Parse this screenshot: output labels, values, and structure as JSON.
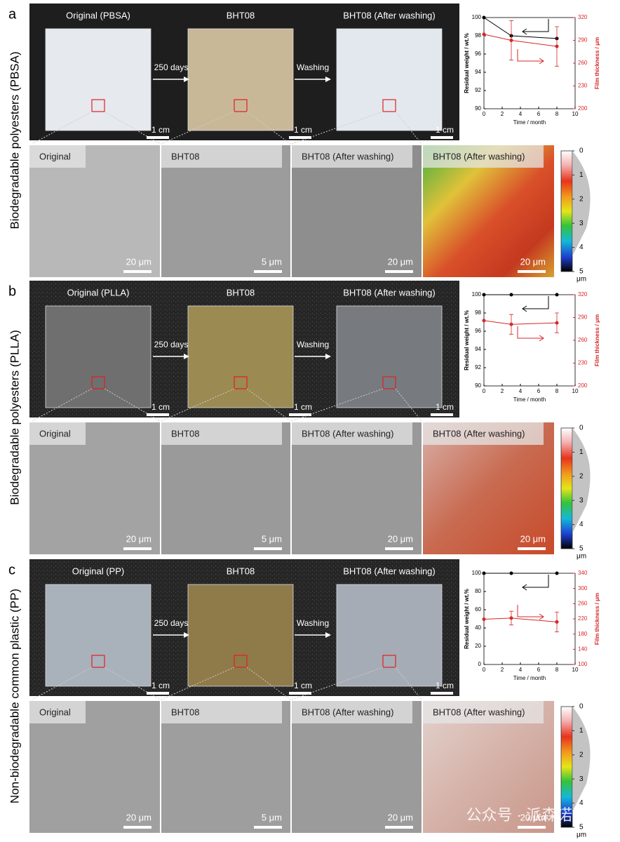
{
  "chart_data": [
    {
      "type": "line",
      "xlabel": "Time / month",
      "ylabel": "Residual weight / wt.%",
      "y2label": "Film thickness / μm",
      "x": [
        0,
        3,
        8
      ],
      "xlim": [
        0,
        10
      ],
      "xticks": [
        0,
        2,
        4,
        6,
        8,
        10
      ],
      "ylim": [
        90,
        100
      ],
      "yticks": [
        90,
        92,
        94,
        96,
        98,
        100
      ],
      "y2lim": [
        200,
        320
      ],
      "y2ticks": [
        200,
        230,
        260,
        290,
        320
      ],
      "series": [
        {
          "color": "#000000",
          "values": [
            100,
            98,
            97.7
          ]
        },
        {
          "color": "#d62728",
          "axis": "y2",
          "values": [
            298,
            290,
            282
          ],
          "errors": [
            null,
            26,
            26
          ]
        }
      ]
    },
    {
      "type": "line",
      "xlabel": "Time / month",
      "ylabel": "Residual weight / wt.%",
      "y2label": "Film thickness / μm",
      "x": [
        0,
        3,
        8
      ],
      "xlim": [
        0,
        10
      ],
      "xticks": [
        0,
        2,
        4,
        6,
        8,
        10
      ],
      "ylim": [
        90,
        100
      ],
      "yticks": [
        90,
        92,
        94,
        96,
        98,
        100
      ],
      "y2lim": [
        200,
        320
      ],
      "y2ticks": [
        200,
        230,
        260,
        290,
        320
      ],
      "series": [
        {
          "color": "#000000",
          "values": [
            100,
            100,
            100
          ]
        },
        {
          "color": "#d62728",
          "axis": "y2",
          "values": [
            286,
            281,
            283
          ],
          "errors": [
            null,
            13,
            13
          ]
        }
      ]
    },
    {
      "type": "line",
      "xlabel": "Time / month",
      "ylabel": "Residual weight / wt.%",
      "y2label": "Film thickness / μm",
      "x": [
        0,
        3,
        8
      ],
      "xlim": [
        0,
        10
      ],
      "xticks": [
        0,
        2,
        4,
        6,
        8,
        10
      ],
      "ylim": [
        0,
        100
      ],
      "yticks": [
        0,
        20,
        40,
        60,
        80,
        100
      ],
      "y2lim": [
        100,
        340
      ],
      "y2ticks": [
        100,
        140,
        180,
        220,
        260,
        300,
        340
      ],
      "series": [
        {
          "color": "#000000",
          "values": [
            100,
            100,
            100
          ]
        },
        {
          "color": "#d62728",
          "axis": "y2",
          "values": [
            219,
            222,
            212
          ],
          "errors": [
            null,
            18,
            26
          ]
        }
      ]
    }
  ],
  "panels": [
    {
      "label": "a",
      "side_label": "Biodegradable polyesters (PBSA)",
      "photo_titles": [
        "Original (PBSA)",
        "BHT08",
        "BHT08 (After washing)"
      ],
      "steps": [
        "250 days",
        "Washing"
      ],
      "photo_scales": [
        "1 cm",
        "1 cm",
        "1 cm"
      ],
      "sem_titles": [
        "Original",
        "BHT08",
        "BHT08 (After washing)",
        "BHT08 (After washing)"
      ],
      "sem_scales": [
        "20 μm",
        "5 μm",
        "20 μm",
        "20 μm"
      ],
      "colorbar_ticks": [
        0,
        1,
        2,
        3,
        4,
        5
      ],
      "colorbar_unit": "μm"
    },
    {
      "label": "b",
      "side_label": "Biodegradable polyesters (PLLA)",
      "photo_titles": [
        "Original (PLLA)",
        "BHT08",
        "BHT08 (After washing)"
      ],
      "steps": [
        "250 days",
        "Washing"
      ],
      "photo_scales": [
        "1 cm",
        "1 cm",
        "1 cm"
      ],
      "sem_titles": [
        "Original",
        "BHT08",
        "BHT08 (After washing)",
        "BHT08 (After washing)"
      ],
      "sem_scales": [
        "20 μm",
        "5 μm",
        "20 μm",
        "20 μm"
      ],
      "colorbar_ticks": [
        0,
        1,
        2,
        3,
        4,
        5
      ],
      "colorbar_unit": "μm"
    },
    {
      "label": "c",
      "side_label": "Non-biodegradable common plastic (PP)",
      "photo_titles": [
        "Original (PP)",
        "BHT08",
        "BHT08 (After washing)"
      ],
      "steps": [
        "250 days",
        "Washing"
      ],
      "photo_scales": [
        "1 cm",
        "1 cm",
        "1 cm"
      ],
      "sem_titles": [
        "Original",
        "BHT08",
        "BHT08 (After washing)",
        "BHT08 (After washing)"
      ],
      "sem_scales": [
        "20 μm",
        "5 μm",
        "20 μm",
        "20 μm"
      ],
      "colorbar_ticks": [
        0,
        1,
        2,
        3,
        4,
        5
      ],
      "colorbar_unit": "μm"
    }
  ],
  "watermark": "公众号 · 派森诺生物"
}
